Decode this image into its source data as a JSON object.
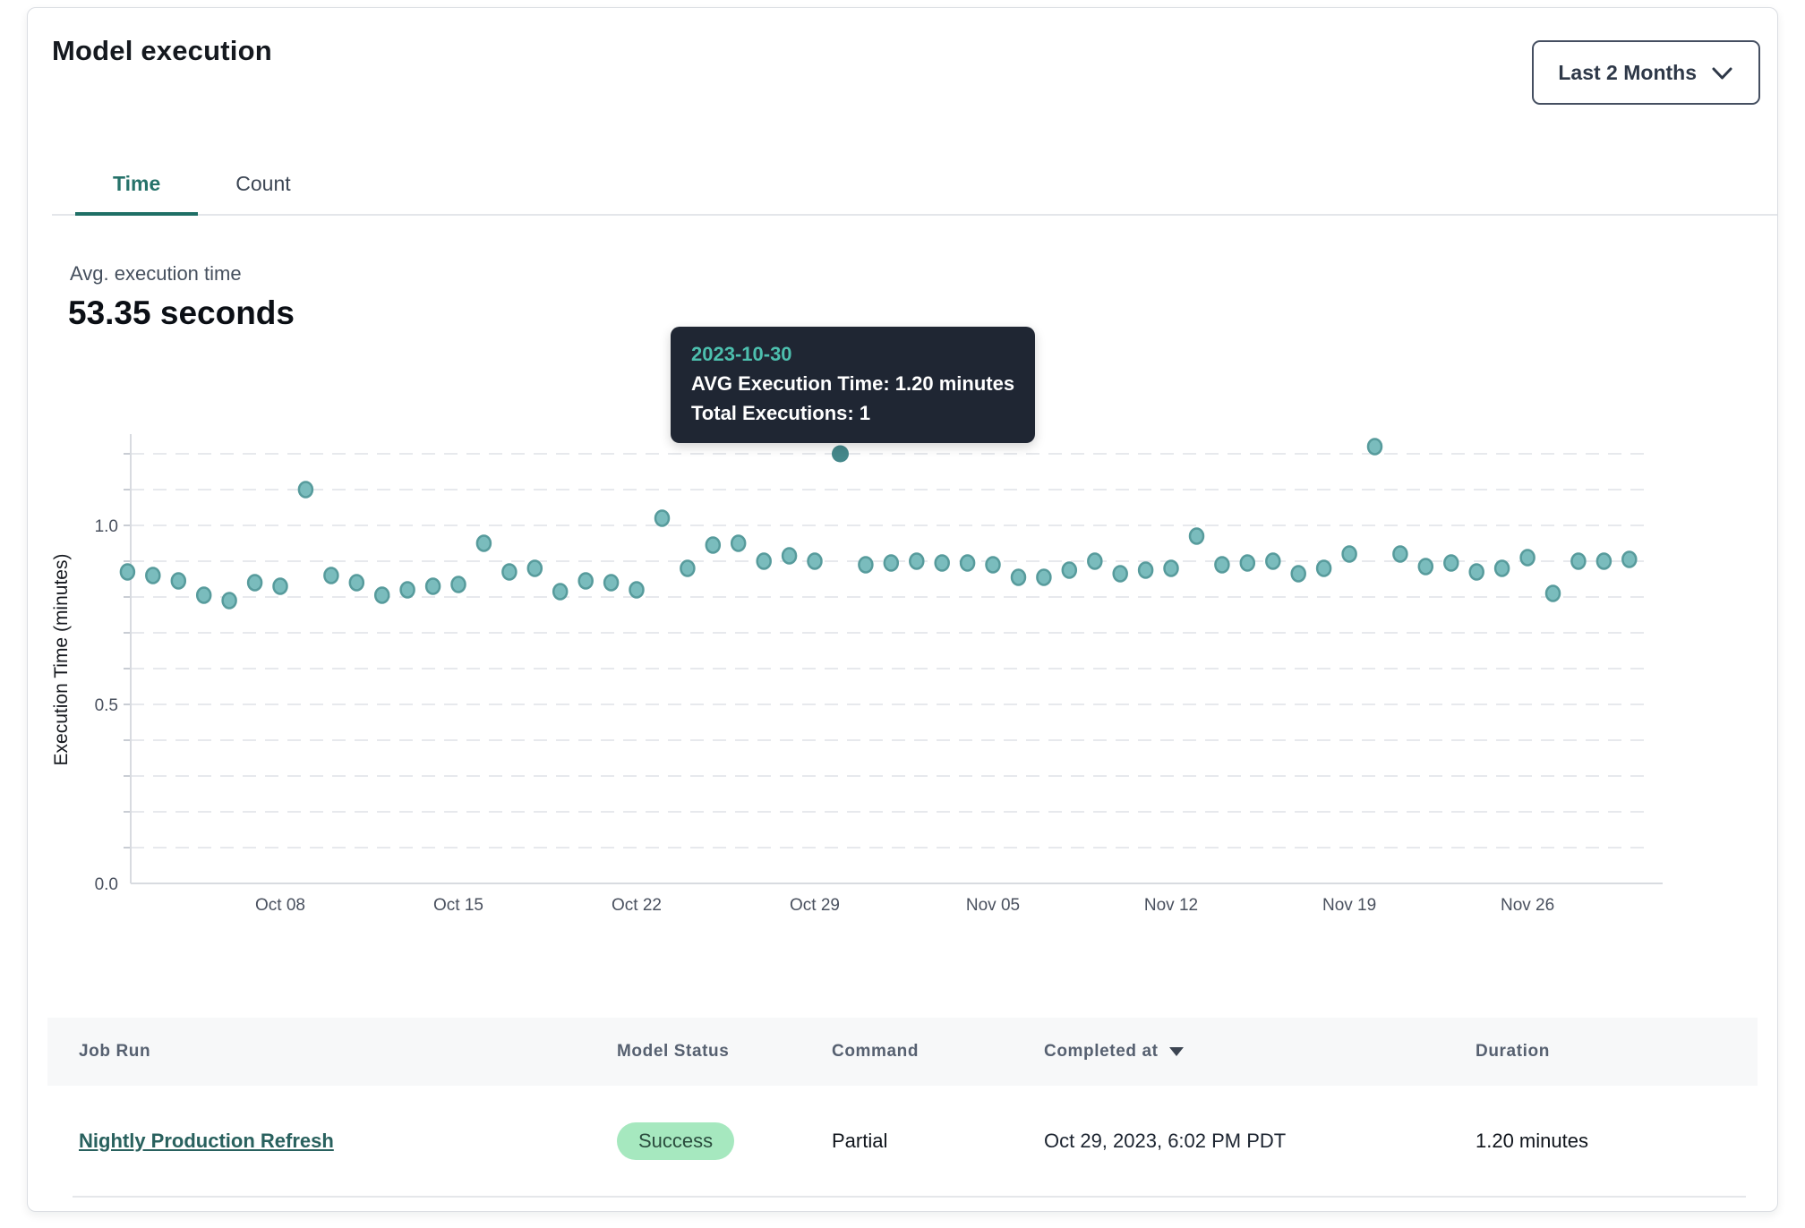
{
  "header": {
    "title": "Model execution",
    "range_selector": {
      "label": "Last 2 Months",
      "icon": "chevron-down-icon"
    }
  },
  "tabs": [
    {
      "label": "Time",
      "active": true
    },
    {
      "label": "Count",
      "active": false
    }
  ],
  "metric": {
    "label": "Avg. execution time",
    "value": "53.35 seconds"
  },
  "tooltip": {
    "date": "2023-10-30",
    "avg_line": "AVG Execution Time: 1.20 minutes",
    "total_line": "Total Executions: 1"
  },
  "chart_data": {
    "type": "scatter",
    "title": "",
    "xlabel": "",
    "ylabel": "Execution Time (minutes)",
    "ylim": [
      0,
      1.25
    ],
    "grid": "horizontal dashed lines every 0.1 from 0.1 to 1.2",
    "legend": "none",
    "y_tick_labels": [
      "0.0",
      "0.5",
      "1.0"
    ],
    "y_tick_values": [
      0,
      0.5,
      1.0
    ],
    "x_ticks": [
      {
        "label": "Oct 08",
        "day": 0
      },
      {
        "label": "Oct 15",
        "day": 7
      },
      {
        "label": "Oct 22",
        "day": 14
      },
      {
        "label": "Oct 29",
        "day": 21
      },
      {
        "label": "Nov 05",
        "day": 28
      },
      {
        "label": "Nov 12",
        "day": 35
      },
      {
        "label": "Nov 19",
        "day": 42
      },
      {
        "label": "Nov 26",
        "day": 49
      }
    ],
    "first_point_day": -6,
    "series": [
      {
        "name": "AVG Execution Time (minutes)",
        "start_date": "2023-10-02",
        "cadence": "daily",
        "values": [
          0.87,
          0.86,
          0.845,
          0.805,
          0.79,
          0.84,
          0.83,
          1.1,
          0.86,
          0.84,
          0.805,
          0.82,
          0.83,
          0.835,
          0.95,
          0.87,
          0.88,
          0.815,
          0.845,
          0.84,
          0.82,
          1.02,
          0.88,
          0.945,
          0.95,
          0.9,
          0.915,
          0.9,
          1.2,
          0.89,
          0.895,
          0.9,
          0.895,
          0.895,
          0.89,
          0.855,
          0.855,
          0.875,
          0.9,
          0.865,
          0.875,
          0.88,
          0.97,
          0.89,
          0.895,
          0.9,
          0.865,
          0.88,
          0.92,
          1.22,
          0.92,
          0.885,
          0.895,
          0.87,
          0.88,
          0.91,
          0.81,
          0.9,
          0.9,
          0.905
        ]
      }
    ],
    "selected_point": {
      "date": "2023-10-30",
      "index": 28,
      "value": 1.2,
      "total_executions": 1
    },
    "marker": {
      "fill": "#7abcbd",
      "stroke": "#579b9c",
      "selected_fill": "#45888b"
    }
  },
  "table": {
    "columns": [
      {
        "label": "Job Run"
      },
      {
        "label": "Model Status"
      },
      {
        "label": "Command"
      },
      {
        "label": "Completed at",
        "sorted": "desc"
      },
      {
        "label": "Duration"
      }
    ],
    "rows": [
      {
        "job_run": "Nightly Production Refresh",
        "model_status": "Success",
        "command": "Partial",
        "completed_at": "Oct 29, 2023, 6:02 PM PDT",
        "duration": "1.20 minutes"
      }
    ]
  },
  "colors": {
    "accent_teal": "#26726a",
    "tab_underline": "#1f6f66",
    "link": "#29615e",
    "badge_bg": "#a6e8bf",
    "badge_text": "#2b4c3e",
    "tooltip_bg": "#1f2633",
    "tooltip_date": "#4dbfae",
    "point_fill": "#7abcbd",
    "point_stroke": "#579b9c",
    "selected_point": "#45888b"
  }
}
